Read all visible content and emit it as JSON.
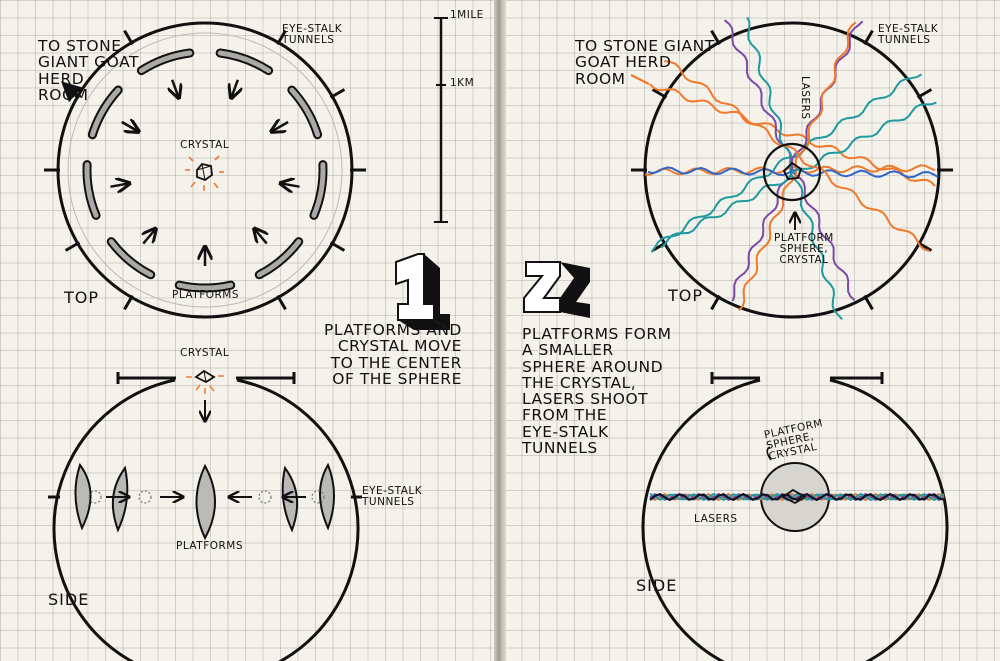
{
  "panel1": {
    "number": "1",
    "top_view": {
      "title": "TOP",
      "exit_label": "TO STONE\nGIANT GOAT\nHERD\nROOM",
      "tunnels_label": "EYE-STALK\nTUNNELS",
      "center_label": "CRYSTAL",
      "bottom_label": "PLATFORMS"
    },
    "scale": {
      "mile_label": "1MILE",
      "km_label": "1KM"
    },
    "caption": "PLATFORMS AND\nCRYSTAL MOVE\nTO THE CENTER\nOF THE SPHERE",
    "side_view": {
      "title": "SIDE",
      "top_label": "CRYSTAL",
      "platforms_label": "PLATFORMS",
      "tunnels_label": "EYE-STALK\nTUNNELS"
    }
  },
  "panel2": {
    "number": "2",
    "top_view": {
      "title": "TOP",
      "exit_label": "TO STONE GIANT\nGOAT HERD\nROOM",
      "tunnels_label": "EYE-STALK\nTUNNELS",
      "lasers_label": "LASERS",
      "center_label": "PLATFORM\nSPHERE,\nCRYSTAL"
    },
    "caption": "PLATFORMS FORM\nA SMALLER\nSPHERE AROUND\nTHE CRYSTAL,\nLASERS SHOOT\nFROM THE\nEYE-STALK\nTUNNELS",
    "side_view": {
      "title": "SIDE",
      "sphere_label": "PLATFORM\nSPHERE,\nCRYSTAL",
      "lasers_label": "LASERS"
    }
  },
  "colors": {
    "ink": "#111111",
    "paper": "#f4f2ea",
    "grid": "#b9b7b0",
    "laser_orange": "#f07a2c",
    "laser_purple": "#7b4aa8",
    "laser_teal": "#1f9aa0",
    "laser_blue": "#2f66c8",
    "crystal_glow": "#f07a2c",
    "platform_gray": "#a9a9a6"
  }
}
